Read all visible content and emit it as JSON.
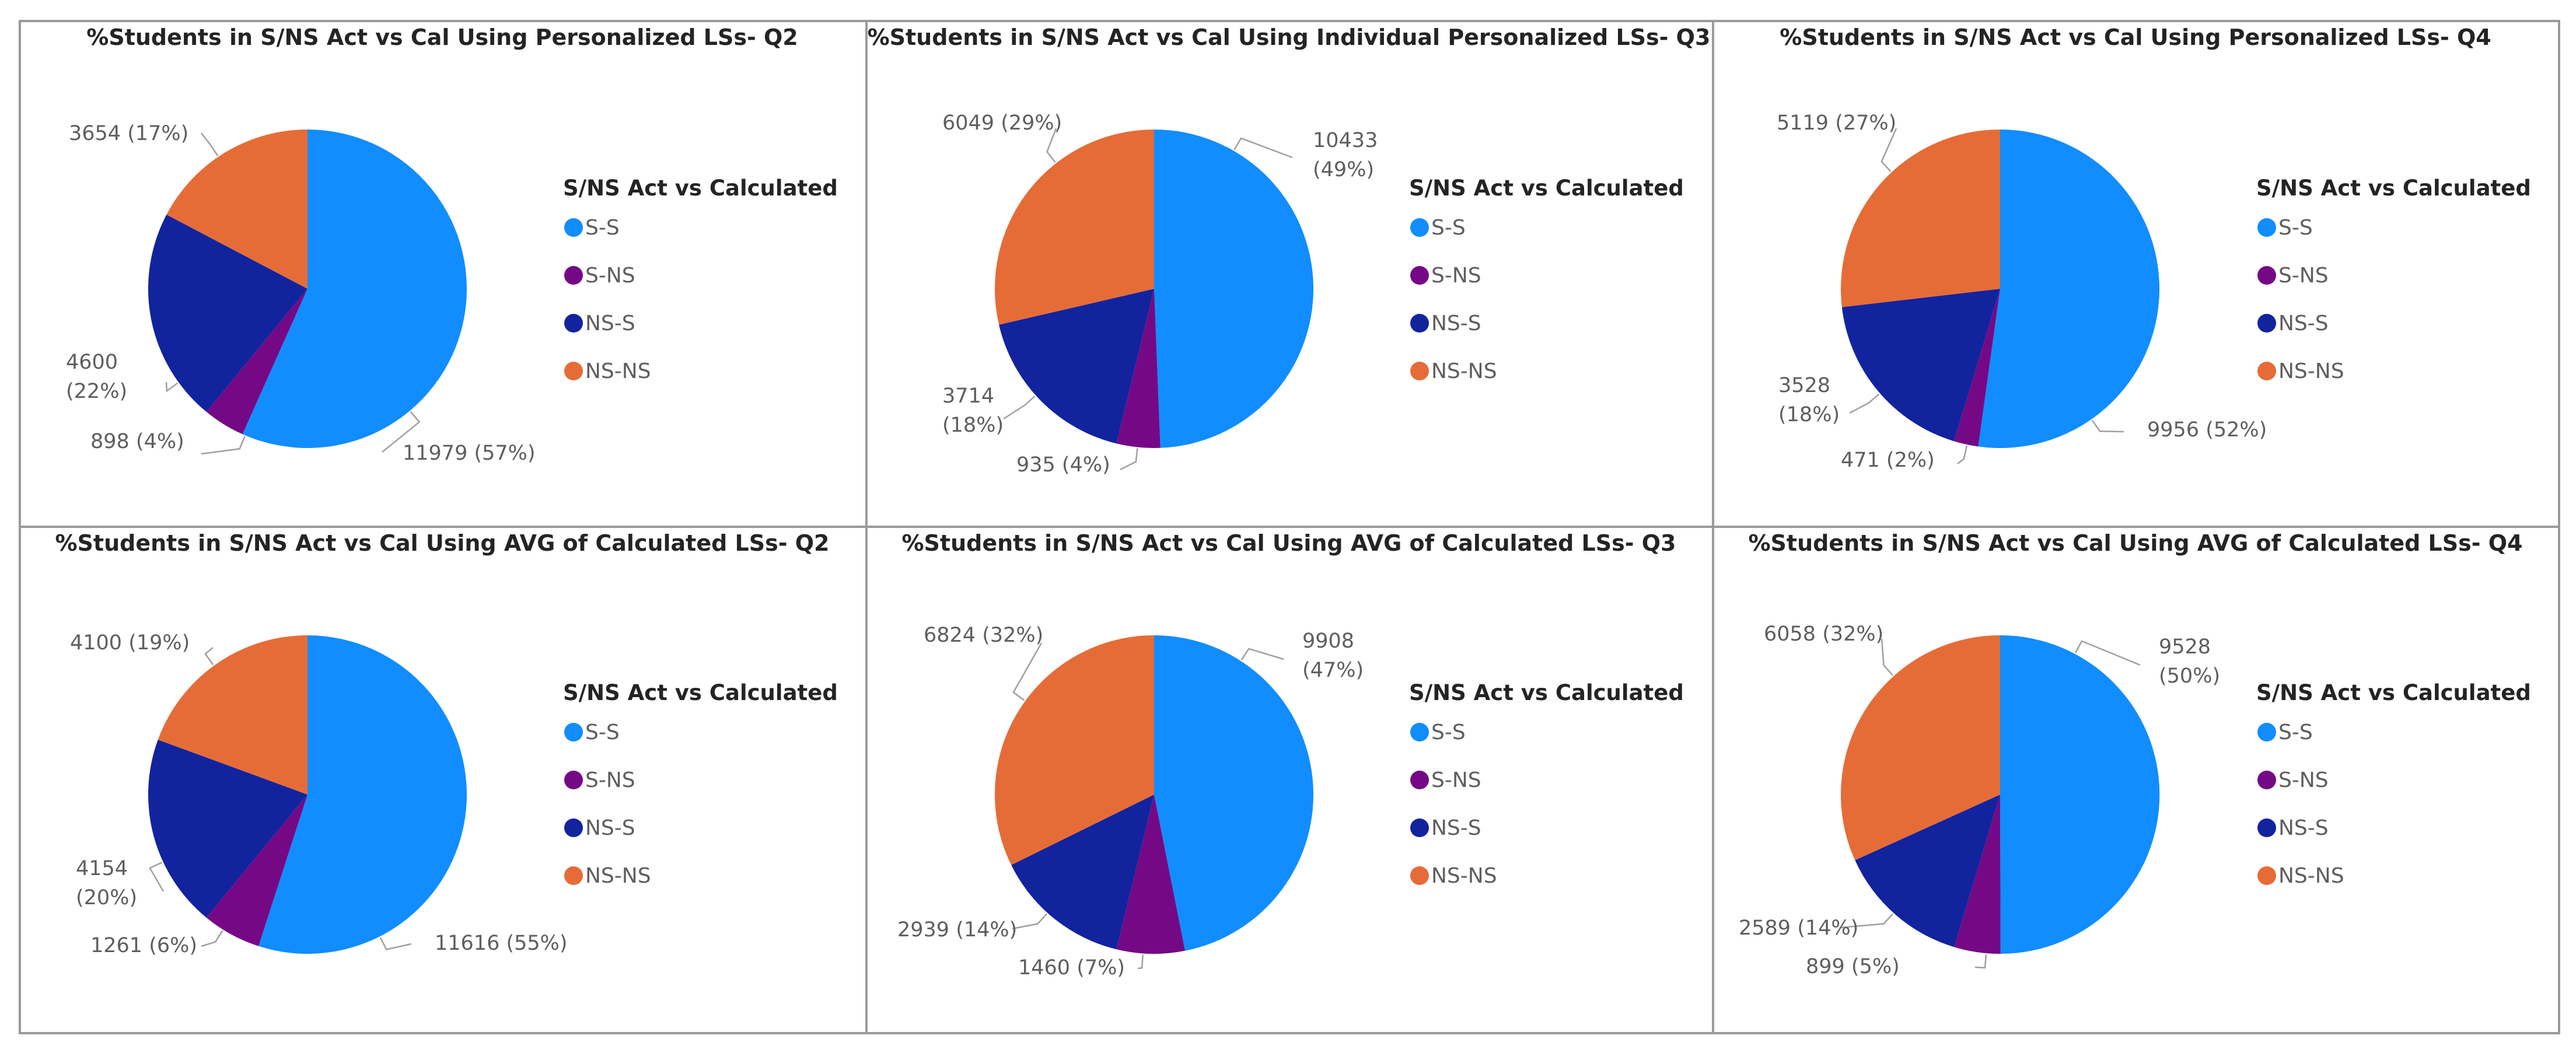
{
  "legend": {
    "title": "S/NS Act vs Calculated",
    "items": [
      "S-S",
      "S-NS",
      "NS-S",
      "NS-NS"
    ],
    "colors": [
      "#118DFF",
      "#750985",
      "#12239E",
      "#E66C37"
    ]
  },
  "chart_data": [
    {
      "type": "pie",
      "title": "%Students in S/NS Act vs Cal Using Personalized LSs- Q2",
      "categories": [
        "S-S",
        "S-NS",
        "NS-S",
        "NS-NS"
      ],
      "values": [
        11979,
        898,
        4600,
        3654
      ],
      "labels": [
        "11979 (57%)",
        "898 (4%)",
        "4600",
        "(22%)",
        "3654 (17%)"
      ]
    },
    {
      "type": "pie",
      "title": "%Students in S/NS Act vs Cal Using Individual Personalized LSs- Q3",
      "categories": [
        "S-S",
        "S-NS",
        "NS-S",
        "NS-NS"
      ],
      "values": [
        10433,
        935,
        3714,
        6049
      ],
      "labels": [
        "10433",
        "(49%)",
        "935 (4%)",
        "3714",
        "(18%)",
        "6049 (29%)"
      ]
    },
    {
      "type": "pie",
      "title": "%Students in S/NS Act vs Cal Using Personalized LSs- Q4",
      "categories": [
        "S-S",
        "S-NS",
        "NS-S",
        "NS-NS"
      ],
      "values": [
        9956,
        471,
        3528,
        5119
      ],
      "labels": [
        "9956 (52%)",
        "471 (2%)",
        "3528",
        "(18%)",
        "5119 (27%)"
      ]
    },
    {
      "type": "pie",
      "title": "%Students in S/NS Act vs Cal Using AVG of Calculated LSs- Q2",
      "categories": [
        "S-S",
        "S-NS",
        "NS-S",
        "NS-NS"
      ],
      "values": [
        11616,
        1261,
        4154,
        4100
      ],
      "labels": [
        "11616 (55%)",
        "1261 (6%)",
        "4154",
        "(20%)",
        "4100 (19%)"
      ]
    },
    {
      "type": "pie",
      "title": "%Students in S/NS Act vs Cal Using AVG of Calculated LSs- Q3",
      "categories": [
        "S-S",
        "S-NS",
        "NS-S",
        "NS-NS"
      ],
      "values": [
        9908,
        1460,
        2939,
        6824
      ],
      "labels": [
        "9908",
        "(47%)",
        "1460 (7%)",
        "2939 (14%)",
        "6824 (32%)"
      ]
    },
    {
      "type": "pie",
      "title": "%Students in S/NS Act vs Cal Using AVG of Calculated LSs- Q4",
      "categories": [
        "S-S",
        "S-NS",
        "NS-S",
        "NS-NS"
      ],
      "values": [
        9528,
        899,
        2589,
        6058
      ],
      "labels": [
        "9528",
        "(50%)",
        "899 (5%)",
        "2589 (14%)",
        "6058 (32%)"
      ]
    }
  ]
}
